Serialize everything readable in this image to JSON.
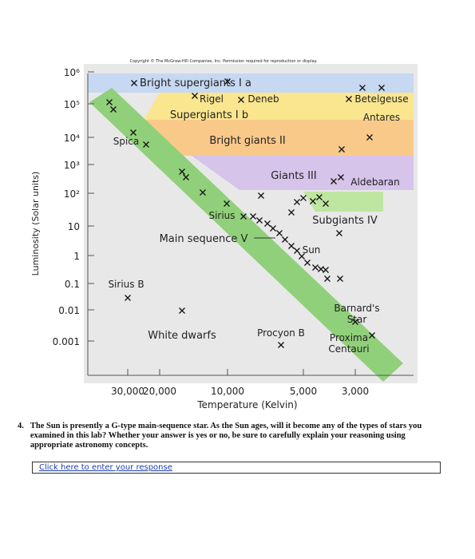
{
  "copyright": "Copyright © The McGraw-Hill Companies, Inc. Permission required for reproduction or display.",
  "y_axis": {
    "label": "Luminosity (Solar units)",
    "ticks": [
      "10⁶",
      "10⁵",
      "10⁴",
      "10³",
      "10²",
      "10",
      "1",
      "0.1",
      "0.01",
      "0.001"
    ]
  },
  "x_axis": {
    "label": "Temperature (Kelvin)",
    "ticks": [
      "30,000",
      "20,000",
      "10,000",
      "5,000",
      "3,000"
    ]
  },
  "regions": [
    "Bright supergiants I a",
    "Supergiants I b",
    "Bright giants II",
    "Giants III",
    "Subgiants IV",
    "Main sequence V",
    "White dwarfs"
  ],
  "stars": [
    {
      "lines": [
        "Rigel"
      ]
    },
    {
      "lines": [
        "Deneb"
      ]
    },
    {
      "lines": [
        "Betelgeuse"
      ]
    },
    {
      "lines": [
        "Antares"
      ]
    },
    {
      "lines": [
        "Spica"
      ]
    },
    {
      "lines": [
        "Aldebaran"
      ]
    },
    {
      "lines": [
        "Sirius"
      ]
    },
    {
      "lines": [
        "Sun"
      ]
    },
    {
      "lines": [
        "Sirius B"
      ]
    },
    {
      "lines": [
        "Procyon B"
      ]
    },
    {
      "lines": [
        "Barnard's",
        "Star"
      ]
    },
    {
      "lines": [
        "Proxima",
        "Centauri"
      ]
    }
  ],
  "question": {
    "number": "4.",
    "text": "The Sun is presently a G-type main-sequence star. As the Sun ages, will it become any of the types of stars you examined in this lab? Whether your answer is yes or no, be sure to carefully explain your reasoning using appropriate astronomy concepts."
  },
  "response_link": "Click here to enter your response"
}
